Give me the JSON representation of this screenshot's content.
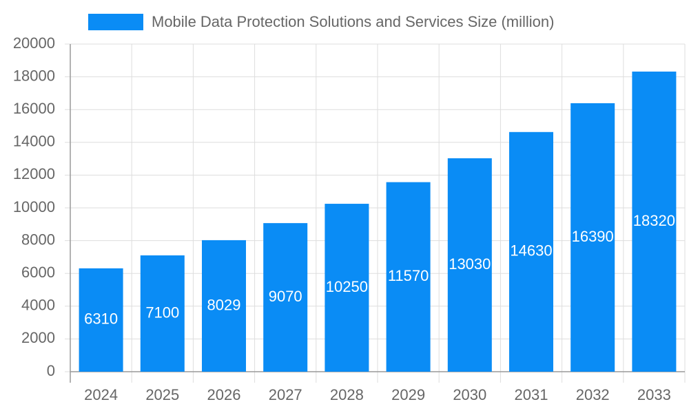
{
  "chart_data": {
    "type": "bar",
    "categories": [
      "2024",
      "2025",
      "2026",
      "2027",
      "2028",
      "2029",
      "2030",
      "2031",
      "2032",
      "2033"
    ],
    "series": [
      {
        "name": "Mobile Data Protection Solutions and Services Size (million)",
        "color": "#0a8cf5",
        "values": [
          6310,
          7100,
          8029,
          9070,
          10250,
          11570,
          13030,
          14630,
          16390,
          18320
        ]
      }
    ],
    "ylim": [
      0,
      20000
    ],
    "yticks": [
      0,
      2000,
      4000,
      6000,
      8000,
      10000,
      12000,
      14000,
      16000,
      18000,
      20000
    ],
    "grid": true
  }
}
